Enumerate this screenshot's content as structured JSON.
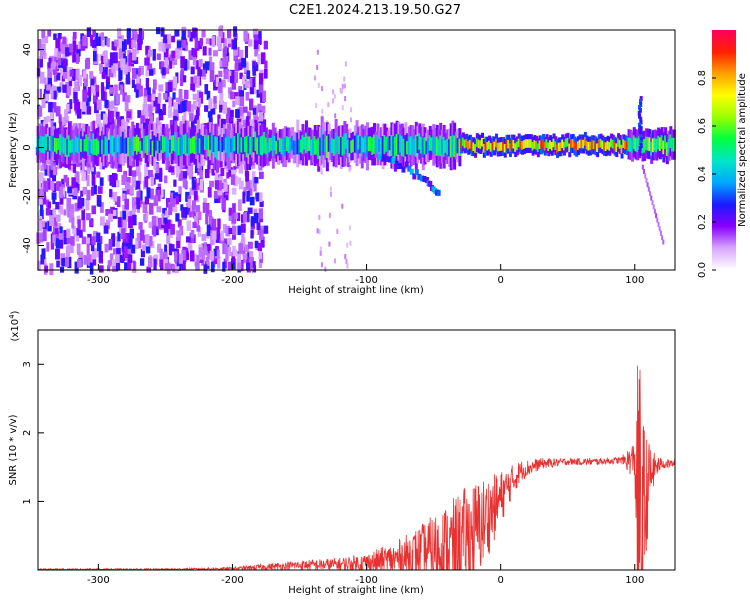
{
  "title": "C2E1.2024.213.19.50.G27",
  "chart_data": [
    {
      "type": "heatmap",
      "xlabel": "Height of straight line (km)",
      "ylabel": "Frequency (Hz)",
      "xlim": [
        -345,
        130
      ],
      "ylim": [
        -50,
        48
      ],
      "xticks": [
        -300,
        -200,
        -100,
        0,
        100
      ],
      "yticks": [
        -40,
        -20,
        0,
        20,
        40
      ],
      "colorbar": {
        "label": "Normalized spectral amplitude",
        "range": [
          0,
          1
        ],
        "ticks": [
          "0.0",
          "0.2",
          "0.4",
          "0.6",
          "0.8"
        ],
        "ramp_colors": [
          "#ffffff",
          "#d9a6ff",
          "#8800ff",
          "#1a1aff",
          "#00a8ff",
          "#00e6c8",
          "#00ff40",
          "#99ff00",
          "#ffff00",
          "#ffa000",
          "#ff2000",
          "#ff0060"
        ]
      },
      "features": {
        "main_band_center_hz": 1,
        "scatter_region_km": [
          -345,
          -175
        ],
        "descending_branch": {
          "x": [
            -90,
            -70,
            -55,
            -45
          ],
          "y": [
            -3,
            -8,
            -14,
            -19
          ]
        },
        "spike_near_km": 103,
        "spike_top_hz": 20
      }
    },
    {
      "type": "line",
      "xlabel": "Height of straight line (km)",
      "ylabel": "SNR (10 * v/v)",
      "yscale_note": "(x10",
      "yscale_exp": "4",
      "xlim": [
        -345,
        130
      ],
      "ylim": [
        0,
        3.5
      ],
      "xticks": [
        -300,
        -200,
        -100,
        0,
        100
      ],
      "yticks": [
        1,
        2,
        3
      ],
      "series_color": "#e83030",
      "envelope": {
        "x": [
          -345,
          -250,
          -200,
          -170,
          -150,
          -120,
          -100,
          -80,
          -60,
          -45,
          -35,
          -25,
          -15,
          -5,
          5,
          15,
          30,
          50,
          70,
          90,
          100,
          103,
          106,
          110,
          115,
          120,
          130
        ],
        "base": [
          0.01,
          0.01,
          0.02,
          0.05,
          0.07,
          0.08,
          0.1,
          0.15,
          0.25,
          0.3,
          0.35,
          0.45,
          0.65,
          0.9,
          1.2,
          1.45,
          1.55,
          1.58,
          1.58,
          1.6,
          1.6,
          0.6,
          0.5,
          1.3,
          1.5,
          1.55,
          1.55
        ],
        "amp": [
          0.01,
          0.01,
          0.02,
          0.05,
          0.07,
          0.1,
          0.15,
          0.25,
          0.4,
          0.6,
          0.7,
          0.8,
          0.7,
          0.5,
          0.3,
          0.15,
          0.08,
          0.05,
          0.05,
          0.05,
          0.3,
          2.9,
          1.8,
          0.6,
          0.2,
          0.08,
          0.05
        ]
      }
    }
  ]
}
